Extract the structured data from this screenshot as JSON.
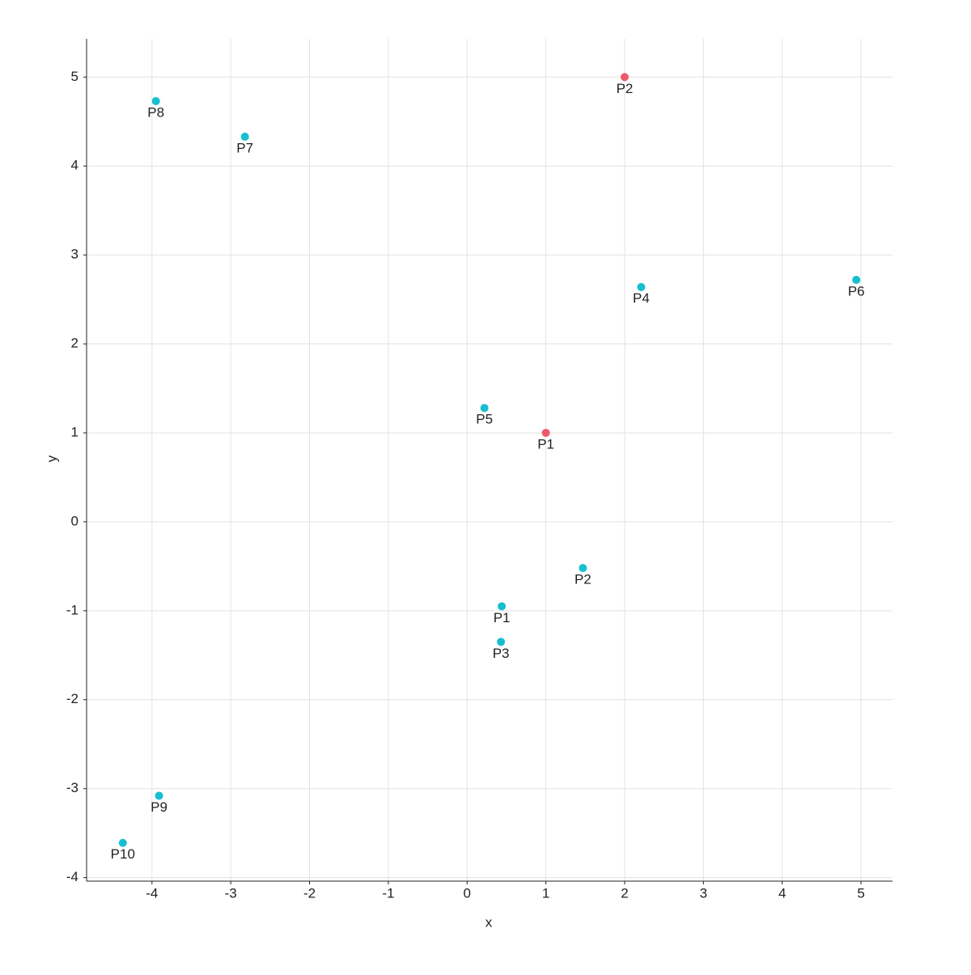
{
  "chart_data": {
    "type": "scatter",
    "x_label": "x",
    "y_label": "y",
    "xlim": [
      -4.83,
      5.4
    ],
    "ylim": [
      -4.04,
      5.43
    ],
    "xticks": [
      -4,
      -3,
      -2,
      -1,
      0,
      1,
      2,
      3,
      4,
      5
    ],
    "yticks": [
      -4,
      -3,
      -2,
      -1,
      0,
      1,
      2,
      3,
      4,
      5
    ],
    "grid": true,
    "series": [
      {
        "color": "#17becf",
        "labels": [
          "P1",
          "P2",
          "P3",
          "P4",
          "P5",
          "P6",
          "P7",
          "P8",
          "P9",
          "P10"
        ],
        "x": [
          0.44,
          1.47,
          0.43,
          2.21,
          0.22,
          4.94,
          -2.82,
          -3.95,
          -3.91,
          -4.37
        ],
        "values": [
          -0.95,
          -0.52,
          -1.35,
          2.64,
          1.28,
          2.72,
          4.33,
          4.73,
          -3.08,
          -3.61
        ]
      },
      {
        "color": "#ef5a6a",
        "labels": [
          "P1",
          "P2"
        ],
        "x": [
          1,
          2
        ],
        "values": [
          1,
          5
        ]
      }
    ]
  }
}
